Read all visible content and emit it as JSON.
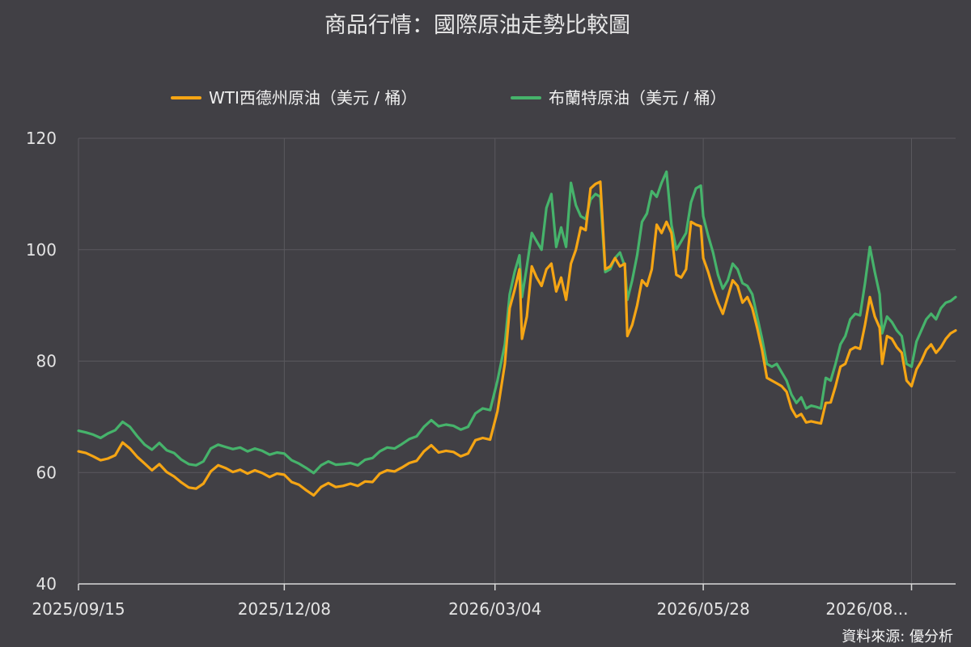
{
  "page": {
    "title": "商品行情：國際原油走勢比較圖",
    "source": "資料來源: 優分析",
    "background": "#414045"
  },
  "chart_data": {
    "type": "line",
    "title": "商品行情：國際原油走勢比較圖",
    "xlabel": "",
    "ylabel": "",
    "ylim": [
      40,
      120
    ],
    "yticks": [
      40,
      60,
      80,
      100,
      120
    ],
    "xlim": [
      "2025/09/15",
      "2026/08/31"
    ],
    "xticks": [
      "2025/09/15",
      "2025/12/08",
      "2026/03/04",
      "2026/05/28",
      "2026/08..."
    ],
    "xtick_positions": [
      0,
      84,
      170,
      255,
      340
    ],
    "grid": true,
    "legend_position": "top-center",
    "series": [
      {
        "name": "WTI西德州原油（美元 / 桶）",
        "color": "#f5a514",
        "points": [
          [
            0,
            63.8
          ],
          [
            3,
            63.5
          ],
          [
            6,
            62.9
          ],
          [
            9,
            62.2
          ],
          [
            12,
            62.5
          ],
          [
            15,
            63.1
          ],
          [
            18,
            65.4
          ],
          [
            21,
            64.3
          ],
          [
            24,
            62.8
          ],
          [
            27,
            61.6
          ],
          [
            30,
            60.4
          ],
          [
            33,
            61.5
          ],
          [
            36,
            60.1
          ],
          [
            39,
            59.3
          ],
          [
            42,
            58.2
          ],
          [
            45,
            57.3
          ],
          [
            48,
            57.1
          ],
          [
            51,
            58.0
          ],
          [
            54,
            60.2
          ],
          [
            57,
            61.3
          ],
          [
            60,
            60.8
          ],
          [
            63,
            60.1
          ],
          [
            66,
            60.5
          ],
          [
            69,
            59.8
          ],
          [
            72,
            60.4
          ],
          [
            75,
            59.9
          ],
          [
            78,
            59.2
          ],
          [
            81,
            59.8
          ],
          [
            84,
            59.6
          ],
          [
            87,
            58.3
          ],
          [
            90,
            57.8
          ],
          [
            93,
            56.8
          ],
          [
            96,
            55.9
          ],
          [
            99,
            57.4
          ],
          [
            102,
            58.1
          ],
          [
            105,
            57.4
          ],
          [
            108,
            57.6
          ],
          [
            111,
            58.0
          ],
          [
            114,
            57.6
          ],
          [
            117,
            58.4
          ],
          [
            120,
            58.3
          ],
          [
            123,
            59.8
          ],
          [
            126,
            60.4
          ],
          [
            129,
            60.2
          ],
          [
            132,
            60.9
          ],
          [
            135,
            61.7
          ],
          [
            138,
            62.1
          ],
          [
            141,
            63.8
          ],
          [
            144,
            64.9
          ],
          [
            147,
            63.6
          ],
          [
            150,
            63.9
          ],
          [
            153,
            63.7
          ],
          [
            156,
            62.9
          ],
          [
            159,
            63.4
          ],
          [
            162,
            65.8
          ],
          [
            165,
            66.2
          ],
          [
            168,
            65.9
          ],
          [
            171,
            71.0
          ],
          [
            174,
            79.5
          ],
          [
            176,
            89.5
          ],
          [
            178,
            92.8
          ],
          [
            180,
            96.5
          ],
          [
            181,
            84.0
          ],
          [
            183,
            88.0
          ],
          [
            185,
            97.0
          ],
          [
            187,
            95.0
          ],
          [
            189,
            93.5
          ],
          [
            191,
            96.5
          ],
          [
            193,
            97.5
          ],
          [
            195,
            92.5
          ],
          [
            197,
            95.0
          ],
          [
            199,
            91.0
          ],
          [
            201,
            97.5
          ],
          [
            203,
            100.0
          ],
          [
            205,
            104.0
          ],
          [
            207,
            103.5
          ],
          [
            209,
            111.0
          ],
          [
            211,
            111.8
          ],
          [
            213,
            112.2
          ],
          [
            215,
            96.5
          ],
          [
            217,
            97.0
          ],
          [
            219,
            98.5
          ],
          [
            221,
            97.0
          ],
          [
            223,
            97.5
          ],
          [
            224,
            84.5
          ],
          [
            226,
            86.5
          ],
          [
            228,
            90.0
          ],
          [
            230,
            94.5
          ],
          [
            232,
            93.5
          ],
          [
            234,
            96.5
          ],
          [
            236,
            104.5
          ],
          [
            238,
            103.0
          ],
          [
            240,
            105.0
          ],
          [
            242,
            103.0
          ],
          [
            244,
            95.5
          ],
          [
            246,
            95.0
          ],
          [
            248,
            96.5
          ],
          [
            250,
            105.0
          ],
          [
            252,
            104.5
          ],
          [
            254,
            104.2
          ],
          [
            255,
            98.5
          ],
          [
            257,
            96.0
          ],
          [
            259,
            93.0
          ],
          [
            261,
            90.5
          ],
          [
            263,
            88.5
          ],
          [
            265,
            91.5
          ],
          [
            267,
            94.5
          ],
          [
            269,
            93.5
          ],
          [
            271,
            90.5
          ],
          [
            273,
            91.5
          ],
          [
            275,
            89.5
          ],
          [
            277,
            86.0
          ],
          [
            279,
            82.0
          ],
          [
            281,
            77.0
          ],
          [
            283,
            76.5
          ],
          [
            285,
            76.0
          ],
          [
            287,
            75.5
          ],
          [
            289,
            74.5
          ],
          [
            291,
            71.5
          ],
          [
            293,
            70.0
          ],
          [
            295,
            70.5
          ],
          [
            297,
            69.0
          ],
          [
            299,
            69.2
          ],
          [
            301,
            69.0
          ],
          [
            303,
            68.8
          ],
          [
            305,
            72.5
          ],
          [
            307,
            72.6
          ],
          [
            309,
            75.5
          ],
          [
            311,
            79.0
          ],
          [
            313,
            79.5
          ],
          [
            315,
            82.0
          ],
          [
            317,
            82.5
          ],
          [
            319,
            82.2
          ],
          [
            321,
            86.5
          ],
          [
            323,
            91.5
          ],
          [
            325,
            88.0
          ],
          [
            327,
            86.0
          ],
          [
            328,
            79.5
          ],
          [
            330,
            84.5
          ],
          [
            332,
            84.0
          ],
          [
            334,
            82.5
          ],
          [
            336,
            81.5
          ],
          [
            338,
            76.5
          ],
          [
            340,
            75.5
          ],
          [
            342,
            78.5
          ],
          [
            344,
            80.0
          ],
          [
            346,
            82.0
          ],
          [
            348,
            83.0
          ],
          [
            350,
            81.5
          ],
          [
            352,
            82.5
          ],
          [
            354,
            84.0
          ],
          [
            356,
            85.0
          ],
          [
            358,
            85.5
          ]
        ]
      },
      {
        "name": "布蘭特原油（美元 / 桶）",
        "color": "#46b36b",
        "points": [
          [
            0,
            67.5
          ],
          [
            3,
            67.2
          ],
          [
            6,
            66.8
          ],
          [
            9,
            66.2
          ],
          [
            12,
            67.0
          ],
          [
            15,
            67.6
          ],
          [
            18,
            69.1
          ],
          [
            21,
            68.2
          ],
          [
            24,
            66.5
          ],
          [
            27,
            65.0
          ],
          [
            30,
            64.1
          ],
          [
            33,
            65.3
          ],
          [
            36,
            64.0
          ],
          [
            39,
            63.5
          ],
          [
            42,
            62.3
          ],
          [
            45,
            61.5
          ],
          [
            48,
            61.3
          ],
          [
            51,
            62.0
          ],
          [
            54,
            64.3
          ],
          [
            57,
            65.0
          ],
          [
            60,
            64.6
          ],
          [
            63,
            64.2
          ],
          [
            66,
            64.5
          ],
          [
            69,
            63.8
          ],
          [
            72,
            64.3
          ],
          [
            75,
            63.9
          ],
          [
            78,
            63.2
          ],
          [
            81,
            63.6
          ],
          [
            84,
            63.4
          ],
          [
            87,
            62.2
          ],
          [
            90,
            61.6
          ],
          [
            93,
            60.8
          ],
          [
            96,
            59.9
          ],
          [
            99,
            61.3
          ],
          [
            102,
            62.0
          ],
          [
            105,
            61.4
          ],
          [
            108,
            61.5
          ],
          [
            111,
            61.7
          ],
          [
            114,
            61.3
          ],
          [
            117,
            62.3
          ],
          [
            120,
            62.6
          ],
          [
            123,
            63.8
          ],
          [
            126,
            64.5
          ],
          [
            129,
            64.3
          ],
          [
            132,
            65.1
          ],
          [
            135,
            66.0
          ],
          [
            138,
            66.5
          ],
          [
            141,
            68.2
          ],
          [
            144,
            69.4
          ],
          [
            147,
            68.3
          ],
          [
            150,
            68.6
          ],
          [
            153,
            68.4
          ],
          [
            156,
            67.7
          ],
          [
            159,
            68.2
          ],
          [
            162,
            70.6
          ],
          [
            165,
            71.5
          ],
          [
            168,
            71.2
          ],
          [
            171,
            76.5
          ],
          [
            174,
            83.0
          ],
          [
            176,
            92.0
          ],
          [
            178,
            96.0
          ],
          [
            180,
            99.0
          ],
          [
            181,
            91.5
          ],
          [
            183,
            97.0
          ],
          [
            185,
            103.0
          ],
          [
            187,
            101.5
          ],
          [
            189,
            100.0
          ],
          [
            191,
            107.5
          ],
          [
            193,
            110.0
          ],
          [
            195,
            100.5
          ],
          [
            197,
            104.0
          ],
          [
            199,
            100.5
          ],
          [
            201,
            112.0
          ],
          [
            203,
            108.0
          ],
          [
            205,
            106.0
          ],
          [
            207,
            105.5
          ],
          [
            209,
            109.0
          ],
          [
            211,
            110.0
          ],
          [
            213,
            109.5
          ],
          [
            215,
            96.0
          ],
          [
            217,
            96.5
          ],
          [
            219,
            98.5
          ],
          [
            221,
            99.5
          ],
          [
            223,
            97.0
          ],
          [
            224,
            91.0
          ],
          [
            226,
            94.5
          ],
          [
            228,
            99.0
          ],
          [
            230,
            105.0
          ],
          [
            232,
            106.5
          ],
          [
            234,
            110.5
          ],
          [
            236,
            109.5
          ],
          [
            238,
            112.0
          ],
          [
            240,
            114.0
          ],
          [
            242,
            104.5
          ],
          [
            244,
            100.0
          ],
          [
            246,
            101.5
          ],
          [
            248,
            103.0
          ],
          [
            250,
            108.5
          ],
          [
            252,
            111.0
          ],
          [
            254,
            111.5
          ],
          [
            255,
            106.0
          ],
          [
            257,
            102.5
          ],
          [
            259,
            99.5
          ],
          [
            261,
            95.5
          ],
          [
            263,
            93.0
          ],
          [
            265,
            94.5
          ],
          [
            267,
            97.5
          ],
          [
            269,
            96.5
          ],
          [
            271,
            94.0
          ],
          [
            273,
            93.5
          ],
          [
            275,
            92.0
          ],
          [
            277,
            88.0
          ],
          [
            279,
            84.0
          ],
          [
            281,
            79.5
          ],
          [
            283,
            79.0
          ],
          [
            285,
            79.5
          ],
          [
            287,
            78.0
          ],
          [
            289,
            76.5
          ],
          [
            291,
            74.0
          ],
          [
            293,
            72.5
          ],
          [
            295,
            73.5
          ],
          [
            297,
            71.5
          ],
          [
            299,
            72.0
          ],
          [
            301,
            71.8
          ],
          [
            303,
            71.5
          ],
          [
            305,
            77.0
          ],
          [
            307,
            76.5
          ],
          [
            309,
            79.5
          ],
          [
            311,
            83.0
          ],
          [
            313,
            84.5
          ],
          [
            315,
            87.5
          ],
          [
            317,
            88.5
          ],
          [
            319,
            88.2
          ],
          [
            321,
            94.0
          ],
          [
            323,
            100.5
          ],
          [
            325,
            96.0
          ],
          [
            327,
            92.0
          ],
          [
            328,
            85.0
          ],
          [
            330,
            88.0
          ],
          [
            332,
            87.0
          ],
          [
            334,
            85.5
          ],
          [
            336,
            84.5
          ],
          [
            338,
            79.5
          ],
          [
            340,
            79.0
          ],
          [
            342,
            83.5
          ],
          [
            344,
            85.5
          ],
          [
            346,
            87.5
          ],
          [
            348,
            88.5
          ],
          [
            350,
            87.5
          ],
          [
            352,
            89.5
          ],
          [
            354,
            90.5
          ],
          [
            356,
            90.8
          ],
          [
            358,
            91.5
          ]
        ]
      }
    ]
  }
}
